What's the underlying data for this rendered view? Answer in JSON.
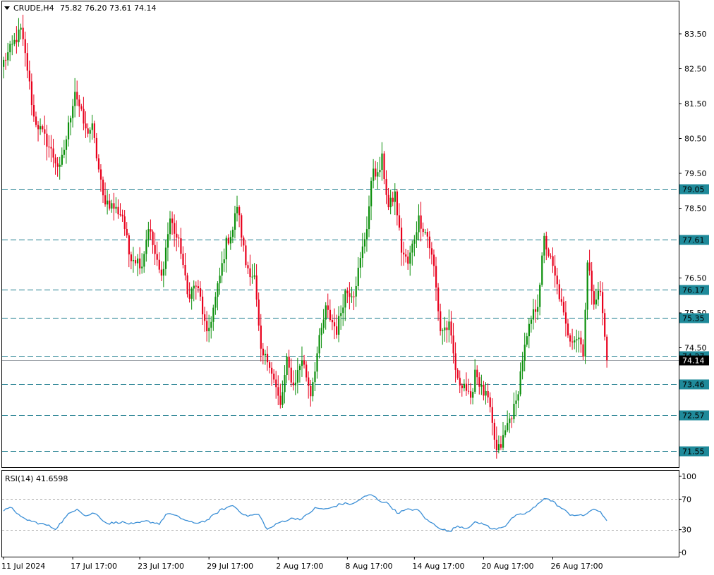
{
  "header": {
    "symbol": "CRUDE,H4",
    "ohlc": "75.82 76.20 73.61 74.14",
    "current_price": "74.14"
  },
  "indicator": {
    "label": "RSI(14) 41.6598",
    "levels": [
      "100",
      "70",
      "30",
      "0"
    ]
  },
  "colors": {
    "bull": "#0b8f0b",
    "bear": "#e8001c",
    "level_line": "#1a7a8c",
    "tag_bg": "#1f8a9a",
    "rsi_line": "#3b8fd6"
  },
  "chart_data": [
    {
      "type": "candlestick",
      "timeframe": "H4",
      "y_ticks": [
        "83.50",
        "82.50",
        "81.50",
        "80.50",
        "79.50",
        "78.50",
        "76.50",
        "75.50",
        "74.50"
      ],
      "ylim": [
        71.2,
        84.3
      ],
      "x_ticks": [
        "11 Jul 2024",
        "17 Jul 17:00",
        "23 Jul 17:00",
        "29 Jul 17:00",
        "2 Aug 17:00",
        "8 Aug 17:00",
        "14 Aug 17:00",
        "20 Aug 17:00",
        "26 Aug 17:00"
      ],
      "levels": [
        "79.05",
        "77.61",
        "76.17",
        "75.35",
        "74.27",
        "73.46",
        "72.57",
        "71.55"
      ],
      "close_path": [
        [
          0,
          82.7
        ],
        [
          8,
          83.6
        ],
        [
          11,
          82.5
        ],
        [
          14,
          81.1
        ],
        [
          20,
          80.4
        ],
        [
          26,
          79.6
        ],
        [
          29,
          80.5
        ],
        [
          33,
          81.9
        ],
        [
          38,
          80.7
        ],
        [
          41,
          80.8
        ],
        [
          46,
          78.8
        ],
        [
          55,
          78.3
        ],
        [
          58,
          77.2
        ],
        [
          64,
          76.9
        ],
        [
          67,
          78.0
        ],
        [
          71,
          76.9
        ],
        [
          73,
          76.5
        ],
        [
          77,
          78.2
        ],
        [
          82,
          77.3
        ],
        [
          85,
          76.0
        ],
        [
          89,
          76.3
        ],
        [
          91,
          75.9
        ],
        [
          94,
          74.8
        ],
        [
          98,
          75.9
        ],
        [
          103,
          77.5
        ],
        [
          106,
          77.9
        ],
        [
          108,
          78.6
        ],
        [
          112,
          76.9
        ],
        [
          116,
          76.5
        ],
        [
          119,
          74.3
        ],
        [
          123,
          74.1
        ],
        [
          128,
          72.8
        ],
        [
          131,
          74.1
        ],
        [
          134,
          73.4
        ],
        [
          138,
          74.2
        ],
        [
          142,
          73.2
        ],
        [
          146,
          74.7
        ],
        [
          149,
          75.6
        ],
        [
          154,
          75.0
        ],
        [
          158,
          76.1
        ],
        [
          162,
          76.1
        ],
        [
          165,
          77.0
        ],
        [
          168,
          78.0
        ],
        [
          171,
          79.7
        ],
        [
          173,
          79.4
        ],
        [
          175,
          79.9
        ],
        [
          178,
          78.5
        ],
        [
          181,
          78.9
        ],
        [
          184,
          77.3
        ],
        [
          187,
          76.9
        ],
        [
          192,
          78.2
        ],
        [
          196,
          77.7
        ],
        [
          199,
          76.8
        ],
        [
          202,
          75.0
        ],
        [
          206,
          75.1
        ],
        [
          210,
          73.5
        ],
        [
          213,
          73.5
        ],
        [
          216,
          72.9
        ],
        [
          218,
          73.9
        ],
        [
          221,
          73.3
        ],
        [
          224,
          73.0
        ],
        [
          228,
          71.5
        ],
        [
          230,
          71.7
        ],
        [
          233,
          72.3
        ],
        [
          237,
          72.9
        ],
        [
          240,
          74.2
        ],
        [
          244,
          75.3
        ],
        [
          247,
          75.8
        ],
        [
          250,
          77.6
        ],
        [
          253,
          77.0
        ],
        [
          257,
          76.0
        ],
        [
          260,
          75.1
        ],
        [
          262,
          74.8
        ],
        [
          266,
          74.8
        ],
        [
          268,
          74.4
        ],
        [
          270,
          76.9
        ],
        [
          273,
          75.9
        ],
        [
          276,
          76.1
        ],
        [
          279,
          74.14
        ]
      ],
      "rsi": {
        "name": "RSI(14)",
        "last": "41.6598",
        "ylim": [
          0,
          100
        ],
        "levels": [
          70,
          30
        ],
        "values": [
          [
            0,
            55
          ],
          [
            4,
            59
          ],
          [
            8,
            46
          ],
          [
            14,
            40
          ],
          [
            20,
            36
          ],
          [
            24,
            31
          ],
          [
            30,
            50
          ],
          [
            34,
            58
          ],
          [
            38,
            48
          ],
          [
            42,
            52
          ],
          [
            48,
            38
          ],
          [
            54,
            40
          ],
          [
            60,
            37
          ],
          [
            66,
            41
          ],
          [
            72,
            38
          ],
          [
            76,
            52
          ],
          [
            82,
            45
          ],
          [
            88,
            38
          ],
          [
            94,
            42
          ],
          [
            100,
            55
          ],
          [
            106,
            62
          ],
          [
            112,
            48
          ],
          [
            118,
            50
          ],
          [
            122,
            30
          ],
          [
            128,
            40
          ],
          [
            134,
            45
          ],
          [
            138,
            44
          ],
          [
            144,
            58
          ],
          [
            150,
            57
          ],
          [
            156,
            64
          ],
          [
            162,
            64
          ],
          [
            166,
            72
          ],
          [
            170,
            76
          ],
          [
            174,
            68
          ],
          [
            178,
            64
          ],
          [
            182,
            52
          ],
          [
            188,
            57
          ],
          [
            192,
            55
          ],
          [
            196,
            42
          ],
          [
            202,
            32
          ],
          [
            206,
            27
          ],
          [
            210,
            35
          ],
          [
            214,
            32
          ],
          [
            218,
            39
          ],
          [
            222,
            38
          ],
          [
            226,
            30
          ],
          [
            232,
            35
          ],
          [
            236,
            47
          ],
          [
            242,
            52
          ],
          [
            246,
            60
          ],
          [
            250,
            72
          ],
          [
            254,
            67
          ],
          [
            258,
            58
          ],
          [
            262,
            50
          ],
          [
            268,
            48
          ],
          [
            272,
            56
          ],
          [
            276,
            54
          ],
          [
            279,
            41.66
          ]
        ]
      }
    }
  ]
}
